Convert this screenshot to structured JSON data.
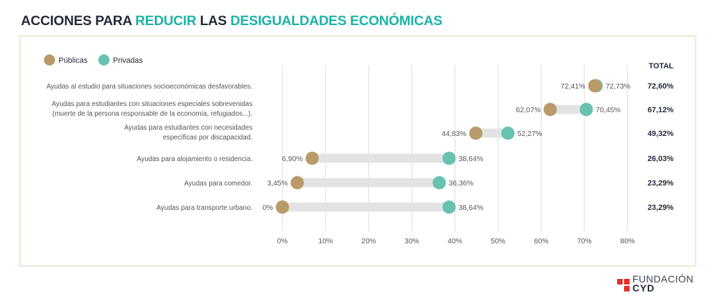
{
  "title": {
    "part1": "ACCIONES PARA ",
    "part2": "REDUCIR",
    "part3": " LAS ",
    "part4": "DESIGUALDADES ECONÓMICAS"
  },
  "colors": {
    "publicas": "#b89b68",
    "privadas": "#68c2b0",
    "connector": "#e3e3e3",
    "grid": "#dcdcdc",
    "title_dark": "#252a3a",
    "title_accent": "#1ab3a6",
    "logo_red": "#e0312d"
  },
  "logo": {
    "line1": "FUNDACIÓN",
    "line2": "CYD"
  },
  "chart_data": {
    "type": "dumbbell",
    "title": "ACCIONES PARA REDUCIR LAS DESIGUALDADES ECONÓMICAS",
    "legend": [
      "Públicas",
      "Privadas"
    ],
    "legend_position": "top-left",
    "total_header": "TOTAL",
    "xlim": [
      0,
      80
    ],
    "xticks": [
      0,
      10,
      20,
      30,
      40,
      50,
      60,
      70,
      80
    ],
    "xtick_labels": [
      "0%",
      "10%",
      "20%",
      "30%",
      "40%",
      "50%",
      "60%",
      "70%",
      "80%"
    ],
    "grid": true,
    "rows": [
      {
        "label": [
          "Ayudas al estudio para situaciones socioeconómicas desfavorables."
        ],
        "publicas": 72.41,
        "publicas_label": "72,41%",
        "privadas": 72.73,
        "privadas_label": "72,73%",
        "total_label": "72,60%"
      },
      {
        "label": [
          "Ayudas para estudiantes con situaciones especiales sobrevenidas",
          "(muerte de la persona responsable de la economía, refugiados...)."
        ],
        "publicas": 62.07,
        "publicas_label": "62,07%",
        "privadas": 70.45,
        "privadas_label": "70,45%",
        "total_label": "67,12%"
      },
      {
        "label": [
          "Ayudas para estudiantes con necesidades",
          "específicas por discapacidad."
        ],
        "publicas": 44.83,
        "publicas_label": "44,83%",
        "privadas": 52.27,
        "privadas_label": "52,27%",
        "total_label": "49,32%"
      },
      {
        "label": [
          "Ayudas para alojamiento o residencia."
        ],
        "publicas": 6.9,
        "publicas_label": "6,90%",
        "privadas": 38.64,
        "privadas_label": "38,64%",
        "total_label": "26,03%"
      },
      {
        "label": [
          "Ayudas para comedor."
        ],
        "publicas": 3.45,
        "publicas_label": "3,45%",
        "privadas": 36.36,
        "privadas_label": "36,36%",
        "total_label": "23,29%"
      },
      {
        "label": [
          "Ayudas para transporte urbano."
        ],
        "publicas": 0,
        "publicas_label": "0%",
        "privadas": 38.64,
        "privadas_label": "38,64%",
        "total_label": "23,29%"
      }
    ]
  }
}
